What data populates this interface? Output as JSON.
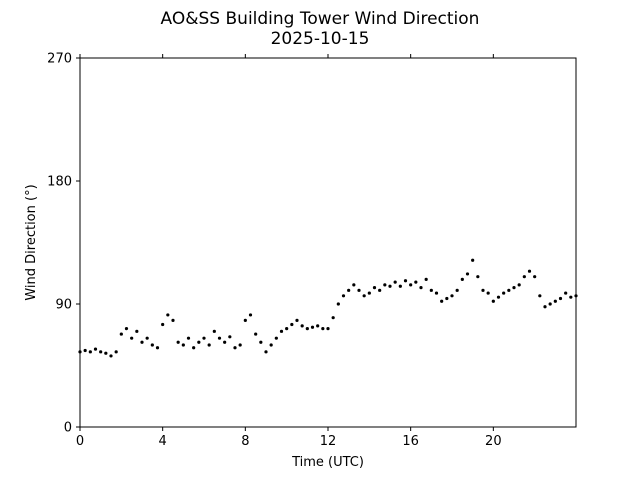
{
  "chart_data": {
    "type": "scatter",
    "title": "AO&SS Building Tower Wind Direction",
    "subtitle": "2025-10-15",
    "xlabel": "Time (UTC)",
    "ylabel": "Wind Direction (°)",
    "xlim": [
      0,
      24
    ],
    "ylim": [
      0,
      270
    ],
    "xticks": [
      0,
      4,
      8,
      12,
      16,
      20
    ],
    "xtick_labels": [
      "0",
      "4",
      "8",
      "12",
      "16",
      "20"
    ],
    "yticks": [
      0,
      90,
      180,
      270
    ],
    "ytick_labels": [
      "0",
      "90",
      "180",
      "270"
    ],
    "grid": false,
    "marker_color": "#000000",
    "series": [
      {
        "x": [
          0.0,
          0.25,
          0.5,
          0.75,
          1.0,
          1.25,
          1.5,
          1.75,
          2.0,
          2.25,
          2.5,
          2.75,
          3.0,
          3.25,
          3.5,
          3.75,
          4.0,
          4.25,
          4.5,
          4.75,
          5.0,
          5.25,
          5.5,
          5.75,
          6.0,
          6.25,
          6.5,
          6.75,
          7.0,
          7.25,
          7.5,
          7.75,
          8.0,
          8.25,
          8.5,
          8.75,
          9.0,
          9.25,
          9.5,
          9.75,
          10.0,
          10.25,
          10.5,
          10.75,
          11.0,
          11.25,
          11.5,
          11.75,
          12.0,
          12.25,
          12.5,
          12.75,
          13.0,
          13.25,
          13.5,
          13.75,
          14.0,
          14.25,
          14.5,
          14.75,
          15.0,
          15.25,
          15.5,
          15.75,
          16.0,
          16.25,
          16.5,
          16.75,
          17.0,
          17.25,
          17.5,
          17.75,
          18.0,
          18.25,
          18.5,
          18.75,
          19.0,
          19.25,
          19.5,
          19.75,
          20.0,
          20.25,
          20.5,
          20.75,
          21.0,
          21.25,
          21.5,
          21.75,
          22.0,
          22.25,
          22.5,
          22.75,
          23.0,
          23.25,
          23.5,
          23.75,
          24.0
        ],
        "y": [
          55,
          56,
          55,
          57,
          55,
          54,
          52,
          55,
          68,
          72,
          65,
          70,
          62,
          65,
          60,
          58,
          75,
          82,
          78,
          62,
          60,
          65,
          58,
          62,
          65,
          60,
          70,
          65,
          62,
          66,
          58,
          60,
          78,
          82,
          68,
          62,
          55,
          60,
          65,
          70,
          72,
          75,
          78,
          74,
          72,
          73,
          74,
          72,
          72,
          80,
          90,
          96,
          100,
          104,
          100,
          96,
          98,
          102,
          100,
          104,
          103,
          106,
          103,
          107,
          104,
          106,
          102,
          108,
          100,
          98,
          92,
          94,
          96,
          100,
          108,
          112,
          122,
          110,
          100,
          98,
          92,
          95,
          98,
          100,
          102,
          104,
          110,
          114,
          110,
          96,
          88,
          90,
          92,
          94,
          98,
          95,
          96
        ]
      }
    ]
  }
}
